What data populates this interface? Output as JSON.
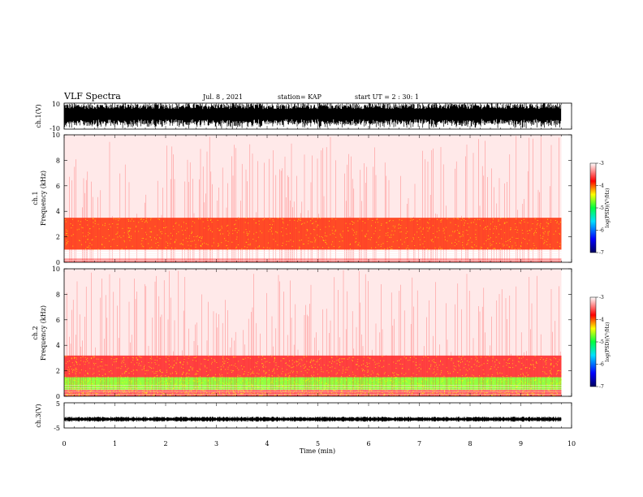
{
  "header": {
    "title": "VLF Spectra",
    "date": "Jul. 8 , 2021",
    "station": "station= KAP",
    "start_ut": "start UT = 2 : 30: 1"
  },
  "chart_data": [
    {
      "type": "line",
      "panel": "ch1-waveform",
      "ylabel": "ch.1(V)",
      "ytick_labels": [
        "10",
        "-10"
      ],
      "ylim": [
        -10,
        10
      ],
      "xlim": [
        0,
        10
      ],
      "note": "dense black waveform, saturating between about -10 and 10 V, data from 0 to ~9.8 min"
    },
    {
      "type": "heatmap",
      "panel": "ch1-spectrogram",
      "ylabel": "ch.1\nFrequency (kHz)",
      "ylabel_lines": [
        "ch.1",
        "Frequency (kHz)"
      ],
      "y_ticks": [
        0,
        2,
        4,
        6,
        8,
        10
      ],
      "ylim": [
        0,
        10
      ],
      "xlim": [
        0,
        10
      ],
      "data_end_min": 9.8,
      "colorbar": {
        "label": "log(PSD)(V²/Hz)",
        "ticks": [
          -3,
          -4,
          -5,
          -6,
          -7
        ],
        "range": [
          -7,
          -3
        ]
      },
      "bands": [
        {
          "f_min": 0.0,
          "f_max": 0.3,
          "level": -3.4
        },
        {
          "f_min": 0.3,
          "f_max": 1.0,
          "level": -3.0
        },
        {
          "f_min": 1.0,
          "f_max": 3.5,
          "level": -3.9
        },
        {
          "f_min": 3.5,
          "f_max": 10.0,
          "level": -3.2
        }
      ]
    },
    {
      "type": "heatmap",
      "panel": "ch2-spectrogram",
      "ylabel": "ch.2\nFrequency (kHz)",
      "ylabel_lines": [
        "ch.2",
        "Frequency (kHz)"
      ],
      "y_ticks": [
        0,
        2,
        4,
        6,
        8,
        10
      ],
      "ylim": [
        0,
        10
      ],
      "xlim": [
        0,
        10
      ],
      "data_end_min": 9.8,
      "colorbar": {
        "label": "log(PSD)(V²/Hz)",
        "ticks": [
          -3,
          -4,
          -5,
          -6,
          -7
        ],
        "range": [
          -7,
          -3
        ]
      },
      "bands": [
        {
          "f_min": 0.0,
          "f_max": 0.5,
          "level": -3.6
        },
        {
          "f_min": 0.5,
          "f_max": 1.5,
          "level": -4.7
        },
        {
          "f_min": 1.5,
          "f_max": 3.2,
          "level": -3.7
        },
        {
          "f_min": 3.2,
          "f_max": 10.0,
          "level": -3.2
        }
      ]
    },
    {
      "type": "line",
      "panel": "ch3-waveform",
      "ylabel": "ch.3(V)",
      "ytick_labels": [
        "5",
        "-5"
      ],
      "ylim": [
        -5,
        5
      ],
      "xlim": [
        0,
        10
      ],
      "level_center": -1.5,
      "note": "thin dense band near -1.5 V"
    }
  ],
  "x_axis": {
    "label": "Time (min)",
    "ticks": [
      "0",
      "1",
      "2",
      "3",
      "4",
      "5",
      "6",
      "7",
      "8",
      "9",
      "10"
    ],
    "range": [
      0,
      10
    ]
  }
}
